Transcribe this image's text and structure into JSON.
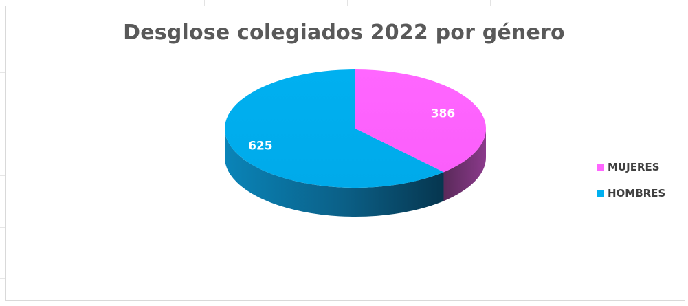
{
  "chart_data": {
    "type": "pie",
    "title": "Desglose colegiados 2022 por género",
    "series": [
      {
        "values": [
          386,
          625
        ]
      }
    ],
    "categories": [
      "MUJERES",
      "HOMBRES"
    ],
    "data_labels": [
      "386",
      "625"
    ],
    "legend": "right",
    "three_d": true,
    "colors": {
      "MUJERES": "#ff66ff",
      "HOMBRES": "#00b0f0"
    }
  }
}
